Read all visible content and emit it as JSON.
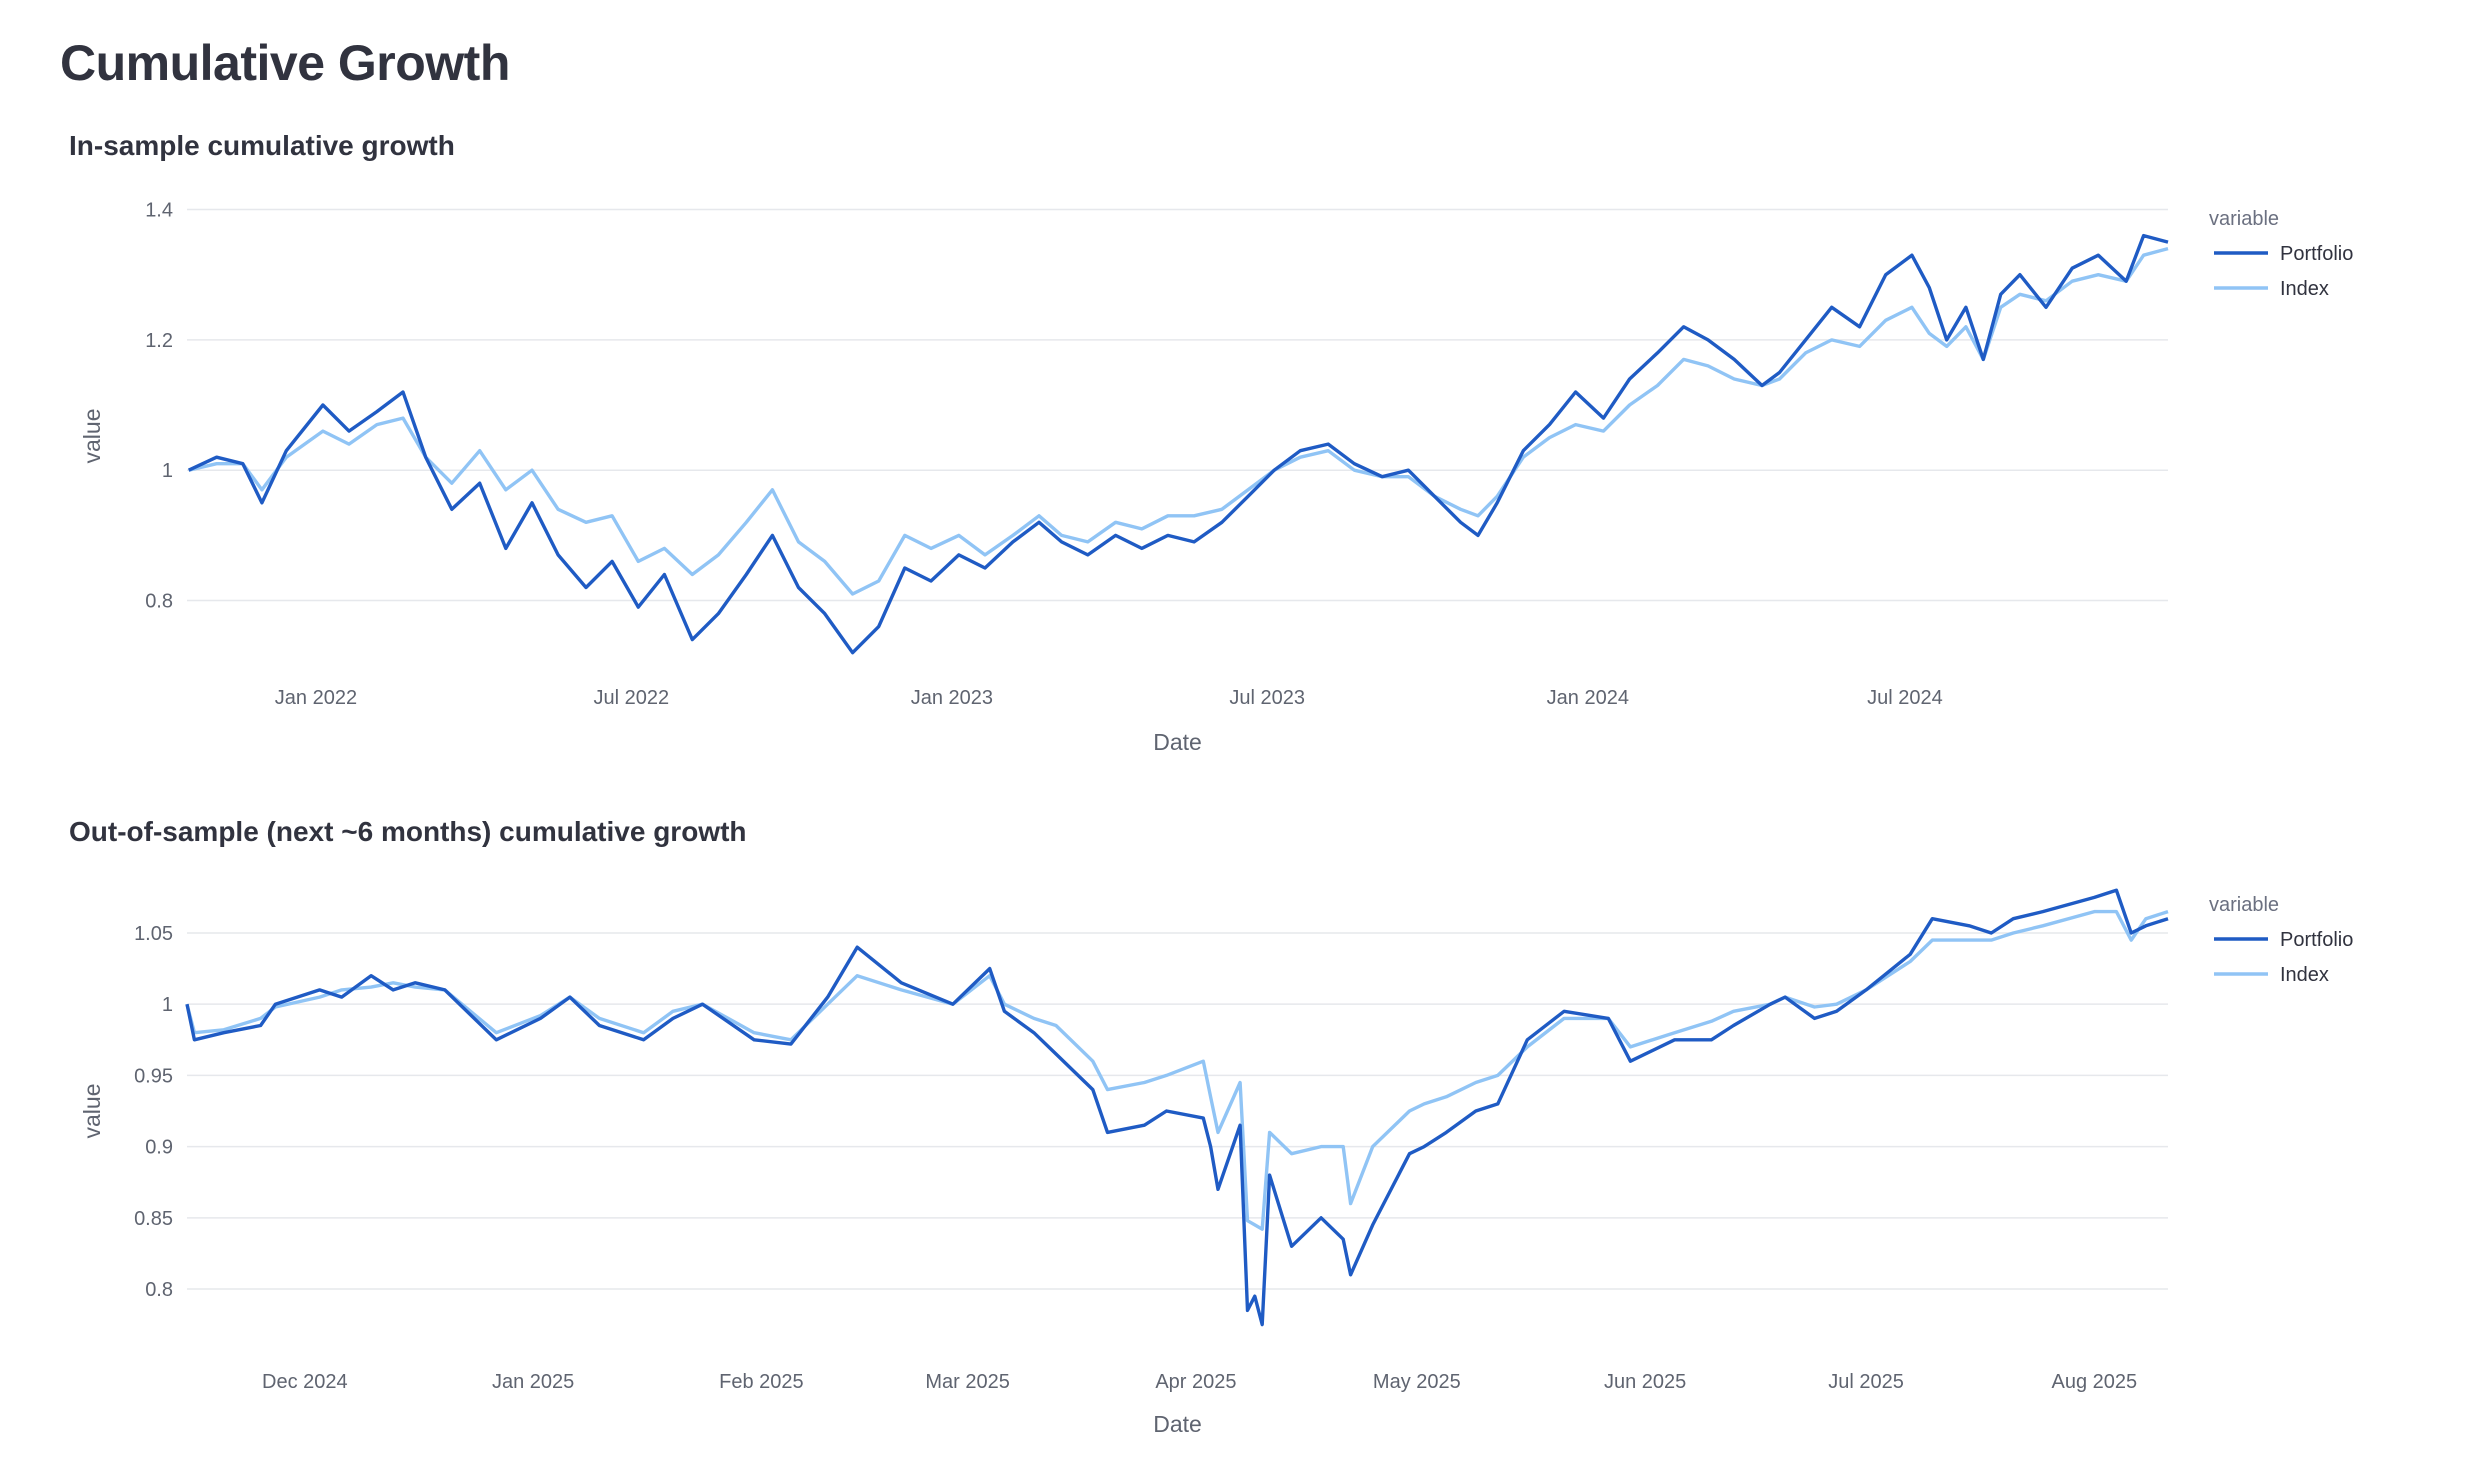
{
  "page": {
    "title": "Cumulative Growth"
  },
  "legend_title": "variable",
  "colors": {
    "portfolio": "#1f5bc4",
    "index": "#90c4f5",
    "grid": "#e6e8ec"
  },
  "chart_data": [
    {
      "type": "line",
      "title": "In-sample cumulative growth",
      "xlabel": "Date",
      "ylabel": "value",
      "x_range": [
        "2021-10-19",
        "2024-11-29"
      ],
      "ylim": [
        0.675,
        1.43
      ],
      "yticks": [
        0.8,
        1,
        1.2,
        1.4
      ],
      "ytick_labels": [
        "0.8",
        "1",
        "1.2",
        "1.4"
      ],
      "xticks": [
        "2022-01-01",
        "2022-07-01",
        "2023-01-01",
        "2023-07-01",
        "2024-01-01",
        "2024-07-01"
      ],
      "xtick_labels": [
        "Jan 2022",
        "Jul 2022",
        "Jan 2023",
        "Jul 2023",
        "Jan 2024",
        "Jul 2024"
      ],
      "legend": "top-right",
      "series": [
        {
          "name": "Portfolio",
          "x": [
            "2021-10-20",
            "2021-11-05",
            "2021-11-20",
            "2021-12-01",
            "2021-12-15",
            "2022-01-05",
            "2022-01-20",
            "2022-02-05",
            "2022-02-20",
            "2022-03-05",
            "2022-03-20",
            "2022-04-05",
            "2022-04-20",
            "2022-05-05",
            "2022-05-20",
            "2022-06-05",
            "2022-06-20",
            "2022-07-05",
            "2022-07-20",
            "2022-08-05",
            "2022-08-20",
            "2022-09-05",
            "2022-09-20",
            "2022-10-05",
            "2022-10-20",
            "2022-11-05",
            "2022-11-20",
            "2022-12-05",
            "2022-12-20",
            "2023-01-05",
            "2023-01-20",
            "2023-02-05",
            "2023-02-20",
            "2023-03-05",
            "2023-03-20",
            "2023-04-05",
            "2023-04-20",
            "2023-05-05",
            "2023-05-20",
            "2023-06-05",
            "2023-06-20",
            "2023-07-05",
            "2023-07-20",
            "2023-08-05",
            "2023-08-20",
            "2023-09-05",
            "2023-09-20",
            "2023-10-05",
            "2023-10-20",
            "2023-10-30",
            "2023-11-10",
            "2023-11-25",
            "2023-12-10",
            "2023-12-25",
            "2024-01-10",
            "2024-01-25",
            "2024-02-10",
            "2024-02-25",
            "2024-03-10",
            "2024-03-25",
            "2024-04-10",
            "2024-04-20",
            "2024-05-05",
            "2024-05-20",
            "2024-06-05",
            "2024-06-20",
            "2024-07-05",
            "2024-07-15",
            "2024-07-25",
            "2024-08-05",
            "2024-08-15",
            "2024-08-25",
            "2024-09-05",
            "2024-09-20",
            "2024-10-05",
            "2024-10-20",
            "2024-11-05",
            "2024-11-15",
            "2024-11-29"
          ],
          "values": [
            1.0,
            1.02,
            1.01,
            0.95,
            1.03,
            1.1,
            1.06,
            1.09,
            1.12,
            1.02,
            0.94,
            0.98,
            0.88,
            0.95,
            0.87,
            0.82,
            0.86,
            0.79,
            0.84,
            0.74,
            0.78,
            0.84,
            0.9,
            0.82,
            0.78,
            0.72,
            0.76,
            0.85,
            0.83,
            0.87,
            0.85,
            0.89,
            0.92,
            0.89,
            0.87,
            0.9,
            0.88,
            0.9,
            0.89,
            0.92,
            0.96,
            1.0,
            1.03,
            1.04,
            1.01,
            0.99,
            1.0,
            0.96,
            0.92,
            0.9,
            0.95,
            1.03,
            1.07,
            1.12,
            1.08,
            1.14,
            1.18,
            1.22,
            1.2,
            1.17,
            1.13,
            1.15,
            1.2,
            1.25,
            1.22,
            1.3,
            1.33,
            1.28,
            1.2,
            1.25,
            1.17,
            1.27,
            1.3,
            1.25,
            1.31,
            1.33,
            1.29,
            1.36,
            1.35
          ]
        },
        {
          "name": "Index",
          "x": [
            "2021-10-20",
            "2021-11-05",
            "2021-11-20",
            "2021-12-01",
            "2021-12-15",
            "2022-01-05",
            "2022-01-20",
            "2022-02-05",
            "2022-02-20",
            "2022-03-05",
            "2022-03-20",
            "2022-04-05",
            "2022-04-20",
            "2022-05-05",
            "2022-05-20",
            "2022-06-05",
            "2022-06-20",
            "2022-07-05",
            "2022-07-20",
            "2022-08-05",
            "2022-08-20",
            "2022-09-05",
            "2022-09-20",
            "2022-10-05",
            "2022-10-20",
            "2022-11-05",
            "2022-11-20",
            "2022-12-05",
            "2022-12-20",
            "2023-01-05",
            "2023-01-20",
            "2023-02-05",
            "2023-02-20",
            "2023-03-05",
            "2023-03-20",
            "2023-04-05",
            "2023-04-20",
            "2023-05-05",
            "2023-05-20",
            "2023-06-05",
            "2023-06-20",
            "2023-07-05",
            "2023-07-20",
            "2023-08-05",
            "2023-08-20",
            "2023-09-05",
            "2023-09-20",
            "2023-10-05",
            "2023-10-20",
            "2023-10-30",
            "2023-11-10",
            "2023-11-25",
            "2023-12-10",
            "2023-12-25",
            "2024-01-10",
            "2024-01-25",
            "2024-02-10",
            "2024-02-25",
            "2024-03-10",
            "2024-03-25",
            "2024-04-10",
            "2024-04-20",
            "2024-05-05",
            "2024-05-20",
            "2024-06-05",
            "2024-06-20",
            "2024-07-05",
            "2024-07-15",
            "2024-07-25",
            "2024-08-05",
            "2024-08-15",
            "2024-08-25",
            "2024-09-05",
            "2024-09-20",
            "2024-10-05",
            "2024-10-20",
            "2024-11-05",
            "2024-11-15",
            "2024-11-29"
          ],
          "values": [
            1.0,
            1.01,
            1.01,
            0.97,
            1.02,
            1.06,
            1.04,
            1.07,
            1.08,
            1.02,
            0.98,
            1.03,
            0.97,
            1.0,
            0.94,
            0.92,
            0.93,
            0.86,
            0.88,
            0.84,
            0.87,
            0.92,
            0.97,
            0.89,
            0.86,
            0.81,
            0.83,
            0.9,
            0.88,
            0.9,
            0.87,
            0.9,
            0.93,
            0.9,
            0.89,
            0.92,
            0.91,
            0.93,
            0.93,
            0.94,
            0.97,
            1.0,
            1.02,
            1.03,
            1.0,
            0.99,
            0.99,
            0.96,
            0.94,
            0.93,
            0.96,
            1.02,
            1.05,
            1.07,
            1.06,
            1.1,
            1.13,
            1.17,
            1.16,
            1.14,
            1.13,
            1.14,
            1.18,
            1.2,
            1.19,
            1.23,
            1.25,
            1.21,
            1.19,
            1.22,
            1.17,
            1.25,
            1.27,
            1.26,
            1.29,
            1.3,
            1.29,
            1.33,
            1.34
          ]
        }
      ]
    },
    {
      "type": "line",
      "title": "Out-of-sample (next ~6 months) cumulative growth",
      "xlabel": "Date",
      "ylabel": "value",
      "x_range": [
        "2024-11-15",
        "2025-08-11"
      ],
      "ylim": [
        0.76,
        1.09
      ],
      "yticks": [
        0.8,
        0.85,
        0.9,
        0.95,
        1,
        1.05
      ],
      "ytick_labels": [
        "0.8",
        "0.85",
        "0.9",
        "0.95",
        "1",
        "1.05"
      ],
      "xticks": [
        "2024-12-01",
        "2025-01-01",
        "2025-02-01",
        "2025-03-01",
        "2025-04-01",
        "2025-05-01",
        "2025-06-01",
        "2025-07-01",
        "2025-08-01"
      ],
      "xtick_labels": [
        "Dec 2024",
        "Jan 2025",
        "Feb 2025",
        "Mar 2025",
        "Apr 2025",
        "May 2025",
        "Jun 2025",
        "Jul 2025",
        "Aug 2025"
      ],
      "legend": "top-right",
      "series": [
        {
          "name": "Portfolio",
          "x": [
            "2024-11-15",
            "2024-11-16",
            "2024-11-20",
            "2024-11-25",
            "2024-11-27",
            "2024-12-03",
            "2024-12-06",
            "2024-12-10",
            "2024-12-13",
            "2024-12-16",
            "2024-12-20",
            "2024-12-27",
            "2025-01-02",
            "2025-01-06",
            "2025-01-10",
            "2025-01-16",
            "2025-01-20",
            "2025-01-24",
            "2025-01-31",
            "2025-02-05",
            "2025-02-10",
            "2025-02-14",
            "2025-02-20",
            "2025-02-27",
            "2025-03-04",
            "2025-03-06",
            "2025-03-10",
            "2025-03-13",
            "2025-03-18",
            "2025-03-20",
            "2025-03-25",
            "2025-03-28",
            "2025-04-02",
            "2025-04-03",
            "2025-04-04",
            "2025-04-07",
            "2025-04-08",
            "2025-04-09",
            "2025-04-10",
            "2025-04-11",
            "2025-04-14",
            "2025-04-18",
            "2025-04-21",
            "2025-04-22",
            "2025-04-25",
            "2025-04-30",
            "2025-05-02",
            "2025-05-05",
            "2025-05-09",
            "2025-05-12",
            "2025-05-16",
            "2025-05-21",
            "2025-05-27",
            "2025-05-30",
            "2025-06-05",
            "2025-06-10",
            "2025-06-13",
            "2025-06-18",
            "2025-06-20",
            "2025-06-24",
            "2025-06-27",
            "2025-07-01",
            "2025-07-07",
            "2025-07-10",
            "2025-07-15",
            "2025-07-18",
            "2025-07-21",
            "2025-07-25",
            "2025-08-01",
            "2025-08-04",
            "2025-08-06",
            "2025-08-08",
            "2025-08-11"
          ],
          "values": [
            1.0,
            0.975,
            0.98,
            0.985,
            1.0,
            1.01,
            1.005,
            1.02,
            1.01,
            1.015,
            1.01,
            0.975,
            0.99,
            1.005,
            0.985,
            0.975,
            0.99,
            1.0,
            0.975,
            0.972,
            1.005,
            1.04,
            1.015,
            1.0,
            1.025,
            0.995,
            0.98,
            0.965,
            0.94,
            0.91,
            0.915,
            0.925,
            0.92,
            0.9,
            0.87,
            0.915,
            0.785,
            0.795,
            0.775,
            0.88,
            0.83,
            0.85,
            0.835,
            0.81,
            0.845,
            0.895,
            0.9,
            0.91,
            0.925,
            0.93,
            0.975,
            0.995,
            0.99,
            0.96,
            0.975,
            0.975,
            0.985,
            1.0,
            1.005,
            0.99,
            0.995,
            1.01,
            1.035,
            1.06,
            1.055,
            1.05,
            1.06,
            1.065,
            1.075,
            1.08,
            1.05,
            1.055,
            1.06
          ]
        },
        {
          "name": "Index",
          "x": [
            "2024-11-15",
            "2024-11-16",
            "2024-11-20",
            "2024-11-25",
            "2024-11-27",
            "2024-12-03",
            "2024-12-06",
            "2024-12-10",
            "2024-12-13",
            "2024-12-16",
            "2024-12-20",
            "2024-12-27",
            "2025-01-02",
            "2025-01-06",
            "2025-01-10",
            "2025-01-16",
            "2025-01-20",
            "2025-01-24",
            "2025-01-31",
            "2025-02-05",
            "2025-02-10",
            "2025-02-14",
            "2025-02-20",
            "2025-02-27",
            "2025-03-04",
            "2025-03-06",
            "2025-03-10",
            "2025-03-13",
            "2025-03-18",
            "2025-03-20",
            "2025-03-25",
            "2025-03-28",
            "2025-04-02",
            "2025-04-03",
            "2025-04-04",
            "2025-04-07",
            "2025-04-08",
            "2025-04-09",
            "2025-04-10",
            "2025-04-11",
            "2025-04-14",
            "2025-04-18",
            "2025-04-21",
            "2025-04-22",
            "2025-04-25",
            "2025-04-30",
            "2025-05-02",
            "2025-05-05",
            "2025-05-09",
            "2025-05-12",
            "2025-05-16",
            "2025-05-21",
            "2025-05-27",
            "2025-05-30",
            "2025-06-05",
            "2025-06-10",
            "2025-06-13",
            "2025-06-18",
            "2025-06-20",
            "2025-06-24",
            "2025-06-27",
            "2025-07-01",
            "2025-07-07",
            "2025-07-10",
            "2025-07-15",
            "2025-07-18",
            "2025-07-21",
            "2025-07-25",
            "2025-08-01",
            "2025-08-04",
            "2025-08-06",
            "2025-08-08",
            "2025-08-11"
          ],
          "values": [
            1.0,
            0.98,
            0.982,
            0.99,
            0.998,
            1.005,
            1.01,
            1.012,
            1.015,
            1.012,
            1.01,
            0.98,
            0.992,
            1.005,
            0.99,
            0.98,
            0.995,
            1.0,
            0.98,
            0.975,
            1.0,
            1.02,
            1.01,
            1.0,
            1.02,
            1.0,
            0.99,
            0.985,
            0.96,
            0.94,
            0.945,
            0.95,
            0.96,
            0.935,
            0.91,
            0.945,
            0.848,
            0.845,
            0.842,
            0.91,
            0.895,
            0.9,
            0.9,
            0.86,
            0.9,
            0.925,
            0.93,
            0.935,
            0.945,
            0.95,
            0.97,
            0.99,
            0.99,
            0.97,
            0.98,
            0.988,
            0.995,
            1.0,
            1.005,
            0.998,
            1.0,
            1.01,
            1.03,
            1.045,
            1.045,
            1.045,
            1.05,
            1.055,
            1.065,
            1.065,
            1.045,
            1.06,
            1.065
          ]
        }
      ]
    }
  ]
}
